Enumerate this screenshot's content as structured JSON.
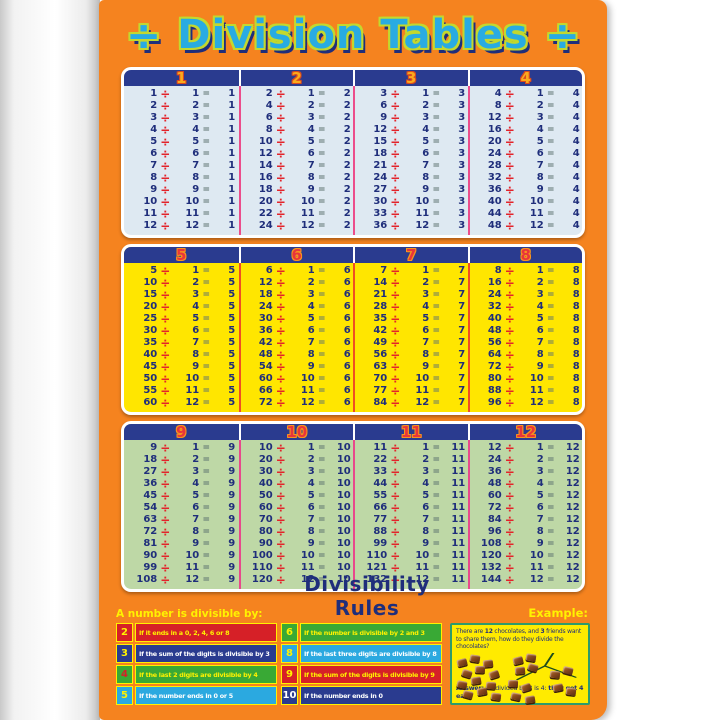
{
  "title": {
    "text": "Division Tables",
    "left_symbol": "÷",
    "right_symbol": "÷"
  },
  "symbols": {
    "divide": "÷",
    "equals": "="
  },
  "colors": {
    "poster_bg": "#F5831F",
    "header_bar": "#2A3B8F",
    "cell_number": "#1F2E7B",
    "divide_sign": "#E3242B",
    "equals_sign": "#5F7470",
    "title_fill": "#29ABE2",
    "title_outline": "#C3D82E",
    "rules_border": "#FFF200"
  },
  "sections": [
    {
      "name": "tables-1-4",
      "body_bg": "#DEE9F2",
      "divider": "#EC4D8B",
      "num_fill": "#FBAA1C",
      "num_stroke": "#D8491F",
      "tables": [
        {
          "label": "1",
          "rows": [
            [
              1,
              1,
              1
            ],
            [
              2,
              2,
              1
            ],
            [
              3,
              3,
              1
            ],
            [
              4,
              4,
              1
            ],
            [
              5,
              5,
              1
            ],
            [
              6,
              6,
              1
            ],
            [
              7,
              7,
              1
            ],
            [
              8,
              8,
              1
            ],
            [
              9,
              9,
              1
            ],
            [
              10,
              10,
              1
            ],
            [
              11,
              11,
              1
            ],
            [
              12,
              12,
              1
            ]
          ]
        },
        {
          "label": "2",
          "rows": [
            [
              2,
              1,
              2
            ],
            [
              4,
              2,
              2
            ],
            [
              6,
              3,
              2
            ],
            [
              8,
              4,
              2
            ],
            [
              10,
              5,
              2
            ],
            [
              12,
              6,
              2
            ],
            [
              14,
              7,
              2
            ],
            [
              16,
              8,
              2
            ],
            [
              18,
              9,
              2
            ],
            [
              20,
              10,
              2
            ],
            [
              22,
              11,
              2
            ],
            [
              24,
              12,
              2
            ]
          ]
        },
        {
          "label": "3",
          "rows": [
            [
              3,
              1,
              3
            ],
            [
              6,
              2,
              3
            ],
            [
              9,
              3,
              3
            ],
            [
              12,
              4,
              3
            ],
            [
              15,
              5,
              3
            ],
            [
              18,
              6,
              3
            ],
            [
              21,
              7,
              3
            ],
            [
              24,
              8,
              3
            ],
            [
              27,
              9,
              3
            ],
            [
              30,
              10,
              3
            ],
            [
              33,
              11,
              3
            ],
            [
              36,
              12,
              3
            ]
          ]
        },
        {
          "label": "4",
          "rows": [
            [
              4,
              1,
              4
            ],
            [
              8,
              2,
              4
            ],
            [
              12,
              3,
              4
            ],
            [
              16,
              4,
              4
            ],
            [
              20,
              5,
              4
            ],
            [
              24,
              6,
              4
            ],
            [
              28,
              7,
              4
            ],
            [
              32,
              8,
              4
            ],
            [
              36,
              9,
              4
            ],
            [
              40,
              10,
              4
            ],
            [
              44,
              11,
              4
            ],
            [
              48,
              12,
              4
            ]
          ]
        }
      ]
    },
    {
      "name": "tables-5-8",
      "body_bg": "#FFE600",
      "divider": "#EF4E23",
      "num_fill": "#E8353B",
      "num_stroke": "#F7941D",
      "tables": [
        {
          "label": "5",
          "rows": [
            [
              5,
              1,
              5
            ],
            [
              10,
              2,
              5
            ],
            [
              15,
              3,
              5
            ],
            [
              20,
              4,
              5
            ],
            [
              25,
              5,
              5
            ],
            [
              30,
              6,
              5
            ],
            [
              35,
              7,
              5
            ],
            [
              40,
              8,
              5
            ],
            [
              45,
              9,
              5
            ],
            [
              50,
              10,
              5
            ],
            [
              55,
              11,
              5
            ],
            [
              60,
              12,
              5
            ]
          ]
        },
        {
          "label": "6",
          "rows": [
            [
              6,
              1,
              6
            ],
            [
              12,
              2,
              6
            ],
            [
              18,
              3,
              6
            ],
            [
              24,
              4,
              6
            ],
            [
              30,
              5,
              6
            ],
            [
              36,
              6,
              6
            ],
            [
              42,
              7,
              6
            ],
            [
              48,
              8,
              6
            ],
            [
              54,
              9,
              6
            ],
            [
              60,
              10,
              6
            ],
            [
              66,
              11,
              6
            ],
            [
              72,
              12,
              6
            ]
          ]
        },
        {
          "label": "7",
          "rows": [
            [
              7,
              1,
              7
            ],
            [
              14,
              2,
              7
            ],
            [
              21,
              3,
              7
            ],
            [
              28,
              4,
              7
            ],
            [
              35,
              5,
              7
            ],
            [
              42,
              6,
              7
            ],
            [
              49,
              7,
              7
            ],
            [
              56,
              8,
              7
            ],
            [
              63,
              9,
              7
            ],
            [
              70,
              10,
              7
            ],
            [
              77,
              11,
              7
            ],
            [
              84,
              12,
              7
            ]
          ]
        },
        {
          "label": "8",
          "rows": [
            [
              8,
              1,
              8
            ],
            [
              16,
              2,
              8
            ],
            [
              24,
              3,
              8
            ],
            [
              32,
              4,
              8
            ],
            [
              40,
              5,
              8
            ],
            [
              48,
              6,
              8
            ],
            [
              56,
              7,
              8
            ],
            [
              64,
              8,
              8
            ],
            [
              72,
              9,
              8
            ],
            [
              80,
              10,
              8
            ],
            [
              88,
              11,
              8
            ],
            [
              96,
              12,
              8
            ]
          ]
        }
      ]
    },
    {
      "name": "tables-9-12",
      "body_bg": "#BED8A6",
      "divider": "#E8488C",
      "num_fill": "#E8353B",
      "num_stroke": "#F7941D",
      "tables": [
        {
          "label": "9",
          "rows": [
            [
              9,
              1,
              9
            ],
            [
              18,
              2,
              9
            ],
            [
              27,
              3,
              9
            ],
            [
              36,
              4,
              9
            ],
            [
              45,
              5,
              9
            ],
            [
              54,
              6,
              9
            ],
            [
              63,
              7,
              9
            ],
            [
              72,
              8,
              9
            ],
            [
              81,
              9,
              9
            ],
            [
              90,
              10,
              9
            ],
            [
              99,
              11,
              9
            ],
            [
              108,
              12,
              9
            ]
          ]
        },
        {
          "label": "10",
          "rows": [
            [
              10,
              1,
              10
            ],
            [
              20,
              2,
              10
            ],
            [
              30,
              3,
              10
            ],
            [
              40,
              4,
              10
            ],
            [
              50,
              5,
              10
            ],
            [
              60,
              6,
              10
            ],
            [
              70,
              7,
              10
            ],
            [
              80,
              8,
              10
            ],
            [
              90,
              9,
              10
            ],
            [
              100,
              10,
              10
            ],
            [
              110,
              11,
              10
            ],
            [
              120,
              12,
              10
            ]
          ]
        },
        {
          "label": "11",
          "rows": [
            [
              11,
              1,
              11
            ],
            [
              22,
              2,
              11
            ],
            [
              33,
              3,
              11
            ],
            [
              44,
              4,
              11
            ],
            [
              55,
              5,
              11
            ],
            [
              66,
              6,
              11
            ],
            [
              77,
              7,
              11
            ],
            [
              88,
              8,
              11
            ],
            [
              99,
              9,
              11
            ],
            [
              110,
              10,
              11
            ],
            [
              121,
              11,
              11
            ],
            [
              132,
              12,
              11
            ]
          ]
        },
        {
          "label": "12",
          "rows": [
            [
              12,
              1,
              12
            ],
            [
              24,
              2,
              12
            ],
            [
              36,
              3,
              12
            ],
            [
              48,
              4,
              12
            ],
            [
              60,
              5,
              12
            ],
            [
              72,
              6,
              12
            ],
            [
              84,
              7,
              12
            ],
            [
              96,
              8,
              12
            ],
            [
              108,
              9,
              12
            ],
            [
              120,
              10,
              12
            ],
            [
              132,
              11,
              12
            ],
            [
              144,
              12,
              12
            ]
          ]
        }
      ]
    }
  ],
  "divisibility": {
    "heading": "A number is divisible by:",
    "title": "Divisibility Rules",
    "rules": [
      {
        "num": "2",
        "text": "If it ends in a 0, 2, 4, 6 or 8",
        "bg": "#D62027",
        "num_color": "#FFF200",
        "text_color": "#FFF200"
      },
      {
        "num": "3",
        "text": "If the sum of the digits is divisible by 3",
        "bg": "#2A3B8F",
        "num_color": "#FFF200",
        "text_color": "#FFFFFF"
      },
      {
        "num": "4",
        "text": "If the last 2 digits are divisible by 4",
        "bg": "#39A935",
        "num_color": "#D62027",
        "text_color": "#FFF200"
      },
      {
        "num": "5",
        "text": "If the number ends in 0 or 5",
        "bg": "#2BA9E0",
        "num_color": "#FFF200",
        "text_color": "#FFFFFF"
      },
      {
        "num": "6",
        "text": "If the number is divisible by 2 and 3",
        "bg": "#39A935",
        "num_color": "#FFF200",
        "text_color": "#FFF200"
      },
      {
        "num": "8",
        "text": "If the last three digits are divisible by 8",
        "bg": "#2BA9E0",
        "num_color": "#FFF200",
        "text_color": "#FFFFFF"
      },
      {
        "num": "9",
        "text": "If the sum of the digits is divisible by 9",
        "bg": "#D62027",
        "num_color": "#FFF200",
        "text_color": "#FFF200"
      },
      {
        "num": "10",
        "text": "If the number ends in 0",
        "bg": "#2A3B8F",
        "num_color": "#FFFFFF",
        "text_color": "#FFFFFF"
      }
    ]
  },
  "example": {
    "label": "Example:",
    "question_parts": [
      {
        "t": "There are "
      },
      {
        "t": "12",
        "b": true
      },
      {
        "t": " chocolates, and "
      },
      {
        "t": "3",
        "b": true
      },
      {
        "t": " friends want to share them, how do they divide the chocolates?"
      }
    ],
    "answer_parts": [
      {
        "t": "Answer:",
        "b": true
      },
      {
        "t": " 12 divided by 3 is 4: "
      },
      {
        "t": "they get 4 each",
        "b": true
      }
    ],
    "chocolate_groups": [
      12,
      12
    ]
  }
}
